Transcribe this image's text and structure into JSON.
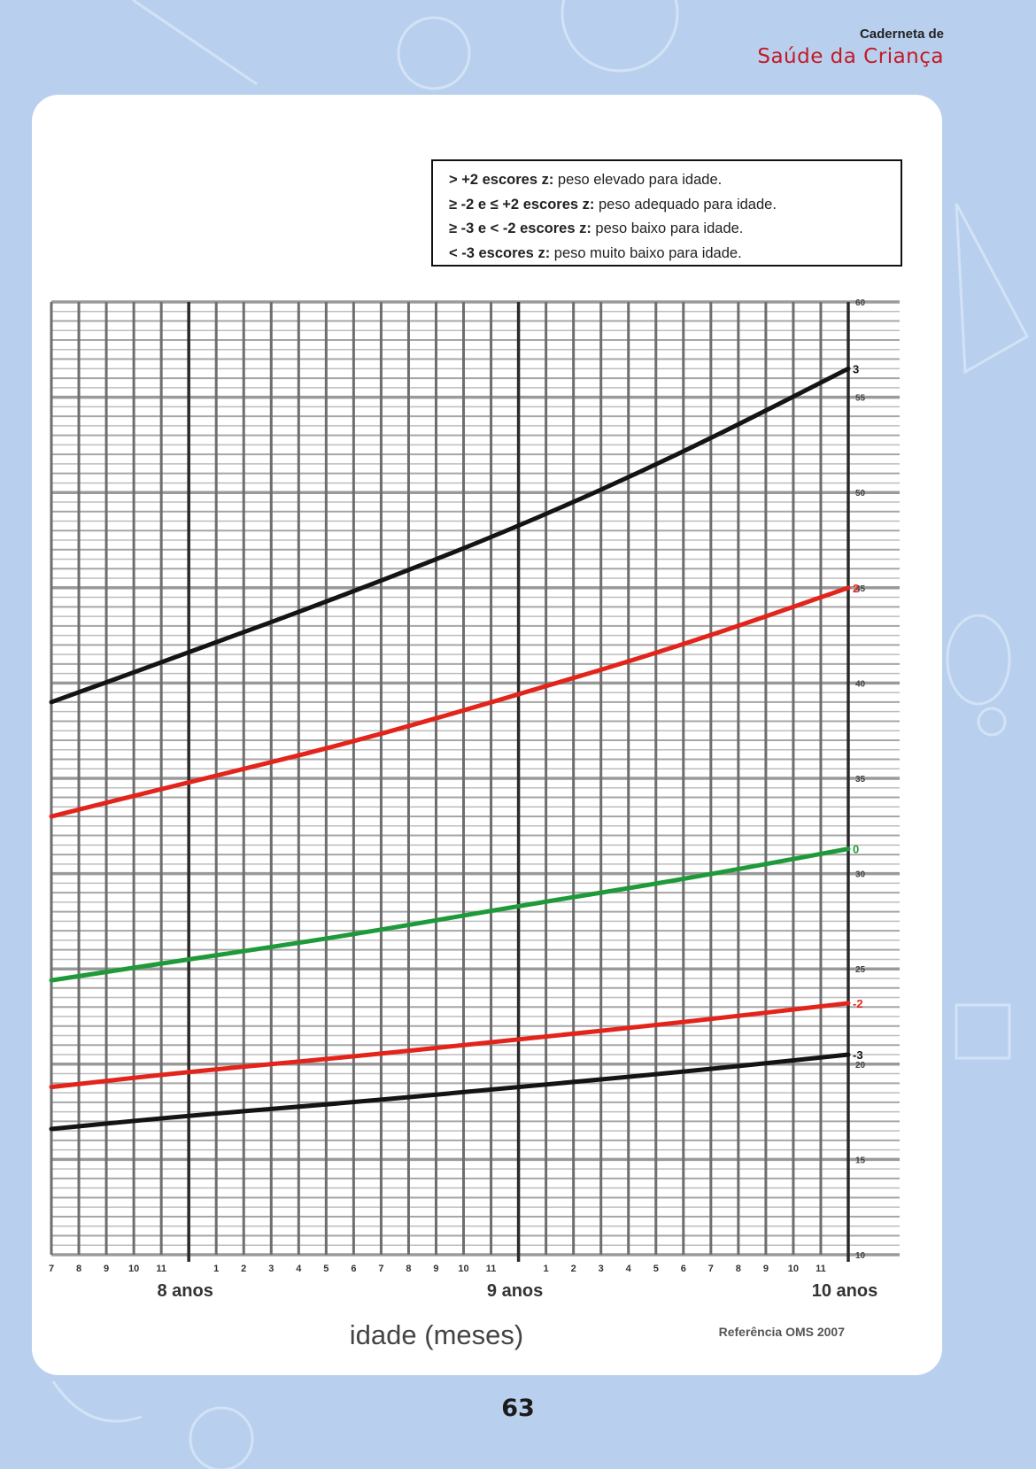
{
  "header": {
    "title_top": "Caderneta de",
    "title_brand": "Saúde da Criança"
  },
  "page_number": "63",
  "legend": [
    {
      "bold": "> +2 escores z:",
      "text": " peso elevado para idade."
    },
    {
      "bold": "≥ -2 e ≤ +2 escores z:",
      "text": " peso adequado para idade."
    },
    {
      "bold": "≥ -3 e < -2 escores z:",
      "text": " peso baixo para idade."
    },
    {
      "bold": "< -3 escores z:",
      "text": " peso muito baixo para idade."
    }
  ],
  "reference": "Referência OMS 2007",
  "colors": {
    "background": "#b8d0ee",
    "black_line": "#141414",
    "red_line": "#e3241b",
    "green_line": "#1f9a3a",
    "grid": "#6e6e6e"
  },
  "chart_data": {
    "type": "line",
    "xlabel": "idade (meses)",
    "ylabel": "",
    "x_unit": "months",
    "xlim": [
      91,
      120
    ],
    "ylim": [
      10,
      60
    ],
    "y_ticks": [
      10,
      15,
      20,
      25,
      30,
      35,
      40,
      45,
      50,
      55,
      60
    ],
    "x_tick_labels": [
      "7",
      "8",
      "9",
      "10",
      "11",
      "",
      "1",
      "2",
      "3",
      "4",
      "5",
      "6",
      "7",
      "8",
      "9",
      "10",
      "11",
      "",
      "1",
      "2",
      "3",
      "4",
      "5",
      "6",
      "7",
      "8",
      "9",
      "10",
      "11",
      ""
    ],
    "year_labels": [
      {
        "month": 96,
        "label": "8 anos"
      },
      {
        "month": 108,
        "label": "9 anos"
      },
      {
        "month": 120,
        "label": "10 anos"
      }
    ],
    "grid": true,
    "series": [
      {
        "name": "3",
        "color": "#141414",
        "x": [
          91,
          96,
          102,
          108,
          114,
          120
        ],
        "values": [
          39.0,
          41.6,
          44.8,
          48.2,
          52.1,
          56.5
        ]
      },
      {
        "name": "2",
        "color": "#e3241b",
        "x": [
          91,
          96,
          102,
          108,
          114,
          120
        ],
        "values": [
          33.0,
          34.8,
          36.9,
          39.4,
          42.0,
          45.0
        ]
      },
      {
        "name": "0",
        "color": "#1f9a3a",
        "x": [
          91,
          96,
          102,
          108,
          114,
          120
        ],
        "values": [
          24.4,
          25.5,
          26.8,
          28.3,
          29.7,
          31.3
        ]
      },
      {
        "name": "-2",
        "color": "#e3241b",
        "x": [
          91,
          96,
          102,
          108,
          114,
          120
        ],
        "values": [
          18.8,
          19.6,
          20.4,
          21.3,
          22.2,
          23.2
        ]
      },
      {
        "name": "-3",
        "color": "#141414",
        "x": [
          91,
          96,
          102,
          108,
          114,
          120
        ],
        "values": [
          16.6,
          17.3,
          18.0,
          18.8,
          19.6,
          20.5
        ]
      }
    ]
  }
}
